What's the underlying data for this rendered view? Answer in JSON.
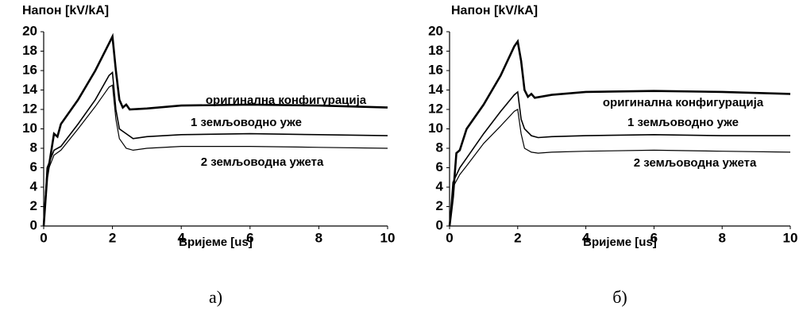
{
  "chart_data": [
    {
      "type": "line",
      "title": "Напон [kV/kA]",
      "x_label": "Вријеме [us]",
      "caption": "а)",
      "xlim": [
        0,
        10
      ],
      "ylim": [
        0,
        20
      ],
      "xticks": [
        0,
        2,
        4,
        6,
        8,
        10
      ],
      "yticks": [
        0,
        2,
        4,
        6,
        8,
        10,
        12,
        14,
        16,
        18,
        20
      ],
      "series": [
        {
          "name": "оригинална конфигурација",
          "color": "#000000",
          "x": [
            0,
            0.1,
            0.3,
            0.4,
            0.5,
            1,
            1.5,
            1.9,
            2,
            2.1,
            2.2,
            2.3,
            2.4,
            2.5,
            3,
            4,
            6,
            8,
            10
          ],
          "values": [
            0,
            5,
            9.5,
            9.2,
            10.5,
            13,
            16,
            18.8,
            19.5,
            16,
            13,
            12.2,
            12.5,
            12,
            12.1,
            12.4,
            12.5,
            12.4,
            12.2
          ]
        },
        {
          "name": "1 земљоводно уже",
          "color": "#000000",
          "x": [
            0,
            0.1,
            0.3,
            0.5,
            1,
            1.5,
            1.9,
            2,
            2.1,
            2.2,
            2.4,
            2.6,
            3,
            4,
            6,
            8,
            10
          ],
          "values": [
            0,
            6,
            7.8,
            8.2,
            10.5,
            13,
            15.5,
            15.8,
            12,
            10,
            9.5,
            9,
            9.2,
            9.4,
            9.5,
            9.4,
            9.3
          ]
        },
        {
          "name": "2 земљоводна ужета",
          "color": "#000000",
          "x": [
            0,
            0.1,
            0.3,
            0.5,
            1,
            1.5,
            1.9,
            2,
            2.1,
            2.2,
            2.4,
            2.6,
            3,
            4,
            6,
            8,
            10
          ],
          "values": [
            0,
            5.5,
            7.3,
            7.8,
            10,
            12.3,
            14.3,
            14.5,
            11,
            9,
            8,
            7.8,
            8,
            8.2,
            8.2,
            8.1,
            8
          ]
        }
      ]
    },
    {
      "type": "line",
      "title": "Напон [kV/kA]",
      "x_label": "Вријеме [us]",
      "caption": "б)",
      "xlim": [
        0,
        10
      ],
      "ylim": [
        0,
        20
      ],
      "xticks": [
        0,
        2,
        4,
        6,
        8,
        10
      ],
      "yticks": [
        0,
        2,
        4,
        6,
        8,
        10,
        12,
        14,
        16,
        18,
        20
      ],
      "series": [
        {
          "name": "оригинална конфигурација",
          "color": "#000000",
          "x": [
            0,
            0.1,
            0.2,
            0.3,
            0.5,
            1,
            1.5,
            1.9,
            2,
            2.1,
            2.2,
            2.3,
            2.4,
            2.5,
            3,
            4,
            6,
            8,
            10
          ],
          "values": [
            0,
            3,
            7.5,
            7.8,
            10,
            12.5,
            15.5,
            18.5,
            19,
            17,
            14,
            13.3,
            13.6,
            13.2,
            13.5,
            13.8,
            13.9,
            13.8,
            13.6
          ]
        },
        {
          "name": "1 земљоводно уже",
          "color": "#000000",
          "x": [
            0,
            0.1,
            0.3,
            0.5,
            1,
            1.5,
            1.9,
            2,
            2.1,
            2.2,
            2.4,
            2.6,
            3,
            4,
            6,
            8,
            10
          ],
          "values": [
            0,
            4.5,
            6,
            7,
            9.5,
            11.8,
            13.5,
            13.8,
            11,
            10,
            9.3,
            9.1,
            9.2,
            9.3,
            9.4,
            9.3,
            9.3
          ]
        },
        {
          "name": "2 земљоводна ужета",
          "color": "#000000",
          "x": [
            0,
            0.1,
            0.3,
            0.5,
            1,
            1.5,
            1.9,
            2,
            2.1,
            2.2,
            2.4,
            2.6,
            3,
            4,
            6,
            8,
            10
          ],
          "values": [
            0,
            4,
            5.3,
            6.2,
            8.5,
            10.3,
            11.8,
            12,
            9.5,
            8,
            7.6,
            7.5,
            7.6,
            7.7,
            7.8,
            7.7,
            7.6
          ]
        }
      ]
    }
  ]
}
